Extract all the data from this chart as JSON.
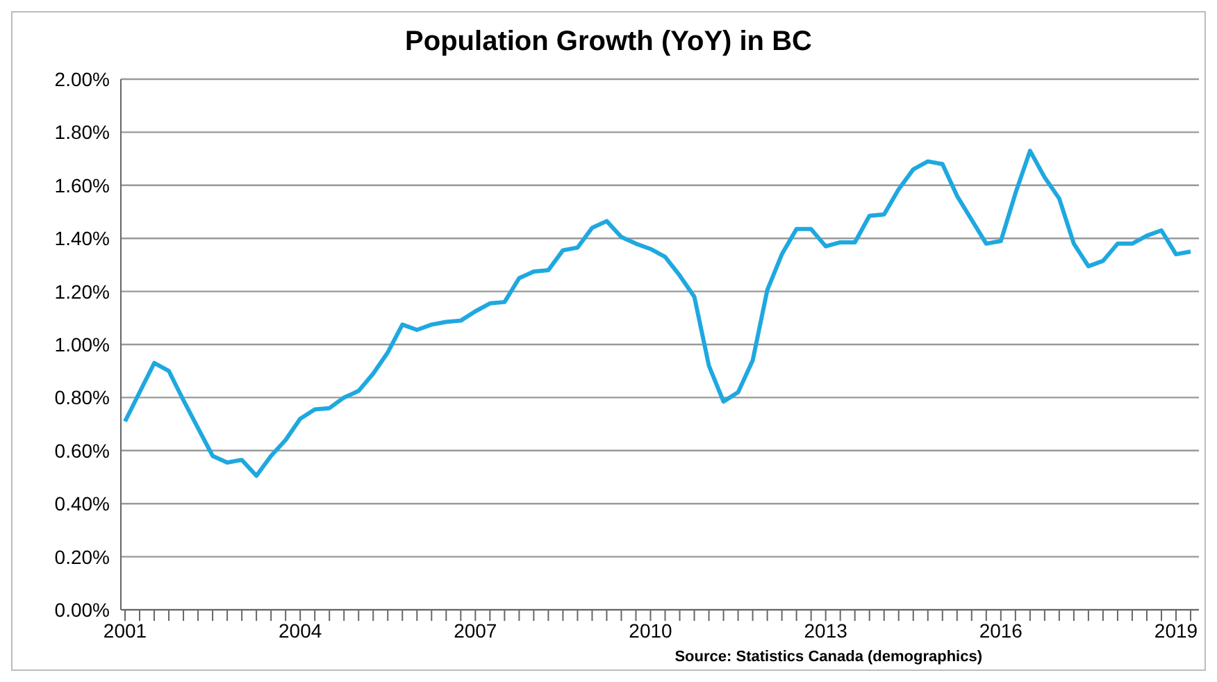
{
  "chart_data": {
    "type": "line",
    "title": "Population Growth (YoY) in BC",
    "categories": [
      "2001",
      null,
      null,
      null,
      null,
      null,
      null,
      null,
      null,
      null,
      null,
      null,
      "2004",
      null,
      null,
      null,
      null,
      null,
      null,
      null,
      null,
      null,
      null,
      null,
      "2007",
      null,
      null,
      null,
      null,
      null,
      null,
      null,
      null,
      null,
      null,
      null,
      "2010",
      null,
      null,
      null,
      null,
      null,
      null,
      null,
      null,
      null,
      null,
      null,
      "2013",
      null,
      null,
      null,
      null,
      null,
      null,
      null,
      null,
      null,
      null,
      null,
      "2016",
      null,
      null,
      null,
      null,
      null,
      null,
      null,
      null,
      null,
      null,
      null,
      "2019",
      null
    ],
    "series": [
      {
        "color": "#1fa8e0",
        "values": [
          0.71,
          0.82,
          0.93,
          0.9,
          0.79,
          0.685,
          0.58,
          0.555,
          0.565,
          0.505,
          0.58,
          0.64,
          0.72,
          0.755,
          0.76,
          0.8,
          0.825,
          0.89,
          0.97,
          1.075,
          1.055,
          1.075,
          1.085,
          1.09,
          1.125,
          1.155,
          1.16,
          1.25,
          1.275,
          1.28,
          1.355,
          1.365,
          1.44,
          1.465,
          1.405,
          1.38,
          1.36,
          1.33,
          1.26,
          1.18,
          0.92,
          0.785,
          0.82,
          0.94,
          1.205,
          1.34,
          1.435,
          1.435,
          1.37,
          1.385,
          1.385,
          1.485,
          1.49,
          1.585,
          1.66,
          1.69,
          1.68,
          1.56,
          1.47,
          1.38,
          1.39,
          1.57,
          1.73,
          1.63,
          1.55,
          1.38,
          1.295,
          1.315,
          1.38,
          1.38,
          1.41,
          1.43,
          1.34,
          1.35
        ]
      }
    ],
    "ylim": [
      0,
      2
    ],
    "yticks": [
      {
        "value": 0,
        "label": "0.00%"
      },
      {
        "value": 0.2,
        "label": "0.20%"
      },
      {
        "value": 0.4,
        "label": "0.40%"
      },
      {
        "value": 0.6,
        "label": "0.60%"
      },
      {
        "value": 0.8,
        "label": "0.80%"
      },
      {
        "value": 1,
        "label": "1.00%"
      },
      {
        "value": 1.2,
        "label": "1.20%"
      },
      {
        "value": 1.4,
        "label": "1.40%"
      },
      {
        "value": 1.6,
        "label": "1.60%"
      },
      {
        "value": 1.8,
        "label": "1.80%"
      },
      {
        "value": 2,
        "label": "2.00%"
      }
    ],
    "grid": "y",
    "marker": "none",
    "line_style": "solid",
    "annotations": [
      "Source: Statistics Canada (demographics)"
    ]
  }
}
